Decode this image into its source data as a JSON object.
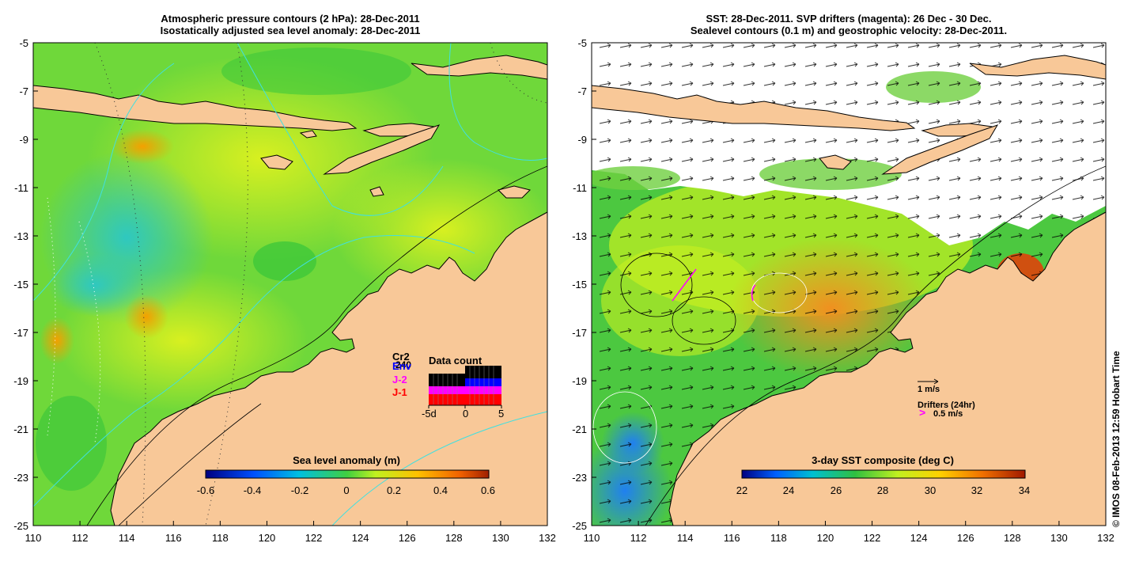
{
  "left_panel": {
    "title_line1": "Atmospheric pressure contours (2 hPa): 28-Dec-2011",
    "title_line2": "Isostatically adjusted sea level anomaly: 28-Dec-2011",
    "colorbar": {
      "label": "Sea level anomaly (m)",
      "ticks": [
        "-0.6",
        "-0.4",
        "-0.2",
        "0",
        "0.2",
        "0.4",
        "0.6"
      ]
    },
    "inset": {
      "title": "Data count",
      "legend": [
        {
          "label": "Cr2",
          "color": "#000000"
        },
        {
          "label": "240",
          "color": "#000000"
        },
        {
          "label": "Env",
          "color": "#0000ff"
        },
        {
          "label": "J-2",
          "color": "#ff00ff"
        },
        {
          "label": "J-1",
          "color": "#ff0000"
        }
      ],
      "xticks": [
        "-5d",
        "0",
        "5"
      ]
    }
  },
  "right_panel": {
    "title_line1": "SST: 28-Dec-2011. SVP drifters (magenta): 26 Dec - 30 Dec.",
    "title_line2": "Sealevel contours (0.1 m) and geostrophic velocity: 28-Dec-2011.",
    "colorbar": {
      "label": "3-day SST composite (deg C)",
      "ticks": [
        "22",
        "24",
        "26",
        "28",
        "30",
        "32",
        "34"
      ]
    },
    "velocity_key": "1 m/s",
    "drifter_key_title": "Drifters (24hr)",
    "drifter_key_value": "0.5 m/s",
    "drifter_key_symbol": ">"
  },
  "axes": {
    "lon_ticks": [
      "110",
      "112",
      "114",
      "116",
      "118",
      "120",
      "122",
      "124",
      "126",
      "128",
      "130",
      "132"
    ],
    "lat_ticks": [
      "-5",
      "-7",
      "-9",
      "-11",
      "-13",
      "-15",
      "-17",
      "-19",
      "-21",
      "-23",
      "-25"
    ],
    "lon_range": [
      110,
      132
    ],
    "lat_range": [
      -25,
      -5
    ]
  },
  "colors": {
    "land": "#f8c898",
    "ocean_green": "#6fd83a",
    "coast": "#000000",
    "drifters": "#ff00ff"
  },
  "credit": "© IMOS 08-Feb-2013 12:59 Hobart Time"
}
